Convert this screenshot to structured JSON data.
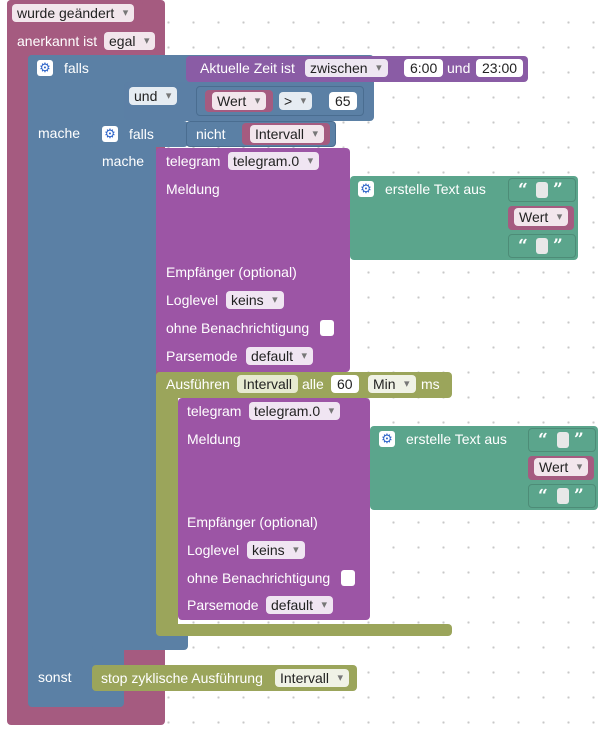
{
  "trigger": {
    "changed_label": "wurde geändert",
    "acknowledged_label": "anerkannt ist",
    "acknowledged_value": "egal"
  },
  "outer_if": {
    "if_label": "falls",
    "then_label": "mache",
    "else_label": "sonst",
    "time_label": "Aktuelle Zeit ist",
    "time_mode": "zwischen",
    "time_start": "6:00",
    "time_and": "und",
    "time_end": "23:00",
    "logic_op": "und",
    "var": "Wert",
    "compare_op": ">",
    "compare_value": "65"
  },
  "inner_if": {
    "if_label": "falls",
    "then_label": "mache",
    "not_label": "nicht",
    "var": "Intervall"
  },
  "telegram1": {
    "label": "telegram",
    "instance": "telegram.0",
    "message_label": "Meldung",
    "text_join_label": "erstelle Text aus",
    "text_var": "Wert",
    "recipient_label": "Empfänger (optional)",
    "loglevel_label": "Loglevel",
    "loglevel_value": "keins",
    "silent_label": "ohne Benachrichtigung",
    "parsemode_label": "Parsemode",
    "parsemode_value": "default"
  },
  "interval": {
    "run_label": "Ausführen",
    "var": "Intervall",
    "every_label": "alle",
    "every_value": "60",
    "unit": "Min",
    "ms_label": "ms"
  },
  "telegram2": {
    "label": "telegram",
    "instance": "telegram.0",
    "message_label": "Meldung",
    "text_join_label": "erstelle Text aus",
    "text_var": "Wert",
    "recipient_label": "Empfänger (optional)",
    "loglevel_label": "Loglevel",
    "loglevel_value": "keins",
    "silent_label": "ohne Benachrichtigung",
    "parsemode_label": "Parsemode",
    "parsemode_value": "default"
  },
  "stop": {
    "label": "stop zyklische Ausführung",
    "var": "Intervall"
  },
  "glyphs": {
    "gear": "⚙",
    "open_quote": "“",
    "close_quote": "”"
  },
  "colors": {
    "trigger": "#a55b80",
    "logic": "#5b80a5",
    "time": "#8a5ca5",
    "telegram": "#9c55a5",
    "timer": "#9ba55b",
    "text": "#5ba58c"
  }
}
